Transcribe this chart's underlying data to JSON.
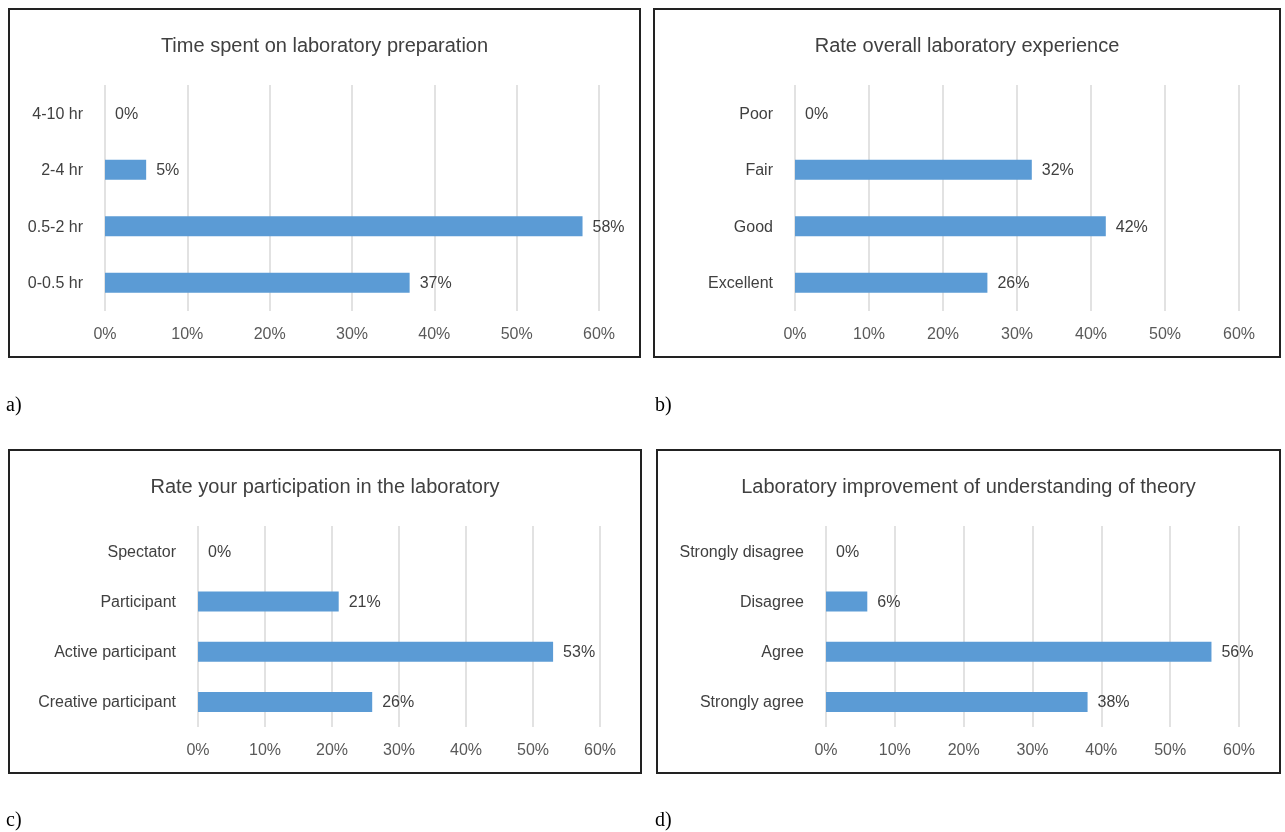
{
  "chart_data": [
    {
      "type": "bar",
      "orientation": "horizontal",
      "title": "Time spent on laboratory preparation",
      "categories": [
        "4-10 hr",
        "2-4 hr",
        "0.5-2 hr",
        "0-0.5 hr"
      ],
      "values": [
        0,
        5,
        58,
        37
      ],
      "value_labels": [
        "0%",
        "5%",
        "58%",
        "37%"
      ],
      "color": "#5b9bd5",
      "xlim": [
        0,
        60
      ],
      "xticks": [
        {
          "value": 0,
          "label": "0%"
        },
        {
          "value": 10,
          "label": "10%"
        },
        {
          "value": 20,
          "label": "20%"
        },
        {
          "value": 30,
          "label": "30%"
        },
        {
          "value": 40,
          "label": "40%"
        },
        {
          "value": 50,
          "label": "50%"
        },
        {
          "value": 60,
          "label": "60%"
        }
      ],
      "grid": "x",
      "annotations": [
        "a)"
      ]
    },
    {
      "type": "bar",
      "orientation": "horizontal",
      "title": "Rate overall laboratory experience",
      "categories": [
        "Poor",
        "Fair",
        "Good",
        "Excellent"
      ],
      "values": [
        0,
        32,
        42,
        26
      ],
      "value_labels": [
        "0%",
        "32%",
        "42%",
        "26%"
      ],
      "color": "#5b9bd5",
      "xlim": [
        0,
        60
      ],
      "xticks": [
        {
          "value": 0,
          "label": "0%"
        },
        {
          "value": 10,
          "label": "10%"
        },
        {
          "value": 20,
          "label": "20%"
        },
        {
          "value": 30,
          "label": "30%"
        },
        {
          "value": 40,
          "label": "40%"
        },
        {
          "value": 50,
          "label": "50%"
        },
        {
          "value": 60,
          "label": "60%"
        }
      ],
      "grid": "x",
      "annotations": [
        "b)"
      ]
    },
    {
      "type": "bar",
      "orientation": "horizontal",
      "title": "Rate your participation in the laboratory",
      "categories": [
        "Spectator",
        "Participant",
        "Active participant",
        "Creative participant"
      ],
      "values": [
        0,
        21,
        53,
        26
      ],
      "value_labels": [
        "0%",
        "21%",
        "53%",
        "26%"
      ],
      "color": "#5b9bd5",
      "xlim": [
        0,
        60
      ],
      "xticks": [
        {
          "value": 0,
          "label": "0%"
        },
        {
          "value": 10,
          "label": "10%"
        },
        {
          "value": 20,
          "label": "20%"
        },
        {
          "value": 30,
          "label": "30%"
        },
        {
          "value": 40,
          "label": "40%"
        },
        {
          "value": 50,
          "label": "50%"
        },
        {
          "value": 60,
          "label": "60%"
        }
      ],
      "grid": "x",
      "annotations": [
        "c)"
      ]
    },
    {
      "type": "bar",
      "orientation": "horizontal",
      "title": "Laboratory improvement of understanding of theory",
      "categories": [
        "Strongly disagree",
        "Disagree",
        "Agree",
        "Strongly agree"
      ],
      "values": [
        0,
        6,
        56,
        38
      ],
      "value_labels": [
        "0%",
        "6%",
        "56%",
        "38%"
      ],
      "color": "#5b9bd5",
      "xlim": [
        0,
        60
      ],
      "xticks": [
        {
          "value": 0,
          "label": "0%"
        },
        {
          "value": 10,
          "label": "10%"
        },
        {
          "value": 20,
          "label": "20%"
        },
        {
          "value": 30,
          "label": "30%"
        },
        {
          "value": 40,
          "label": "40%"
        },
        {
          "value": 50,
          "label": "50%"
        },
        {
          "value": 60,
          "label": "60%"
        }
      ],
      "grid": "x",
      "annotations": [
        "d)"
      ]
    }
  ]
}
